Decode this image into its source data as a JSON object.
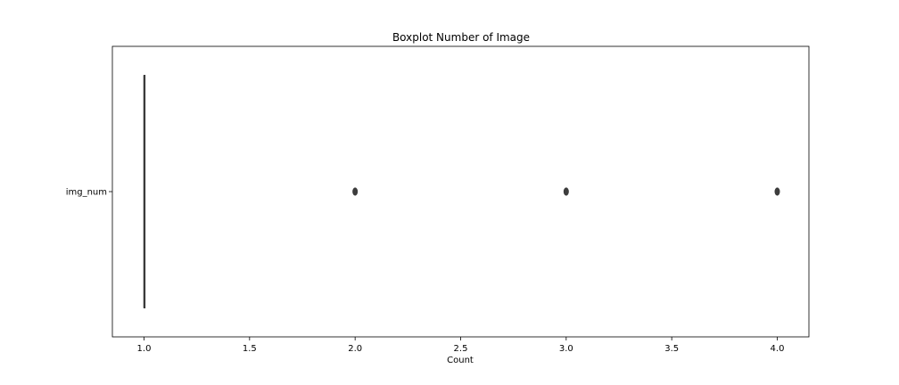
{
  "chart_data": {
    "type": "boxplot",
    "title": "Boxplot Number of Image",
    "xlabel": "Count",
    "ylabel": "",
    "orientation": "horizontal",
    "xlim": [
      0.85,
      4.15
    ],
    "xticks": [
      1.0,
      1.5,
      2.0,
      2.5,
      3.0,
      3.5,
      4.0
    ],
    "xtick_labels": [
      "1.0",
      "1.5",
      "2.0",
      "2.5",
      "3.0",
      "3.5",
      "4.0"
    ],
    "categories": [
      "img_num"
    ],
    "boxes": [
      {
        "label": "img_num",
        "q1": 1.0,
        "median": 1.0,
        "q3": 1.0,
        "whisker_low": 1.0,
        "whisker_high": 1.0,
        "outliers": [
          2.0,
          3.0,
          4.0
        ]
      }
    ],
    "grid": false,
    "colors": {
      "box": "#3a3a3a",
      "outlier": "#3d3d3d"
    }
  }
}
